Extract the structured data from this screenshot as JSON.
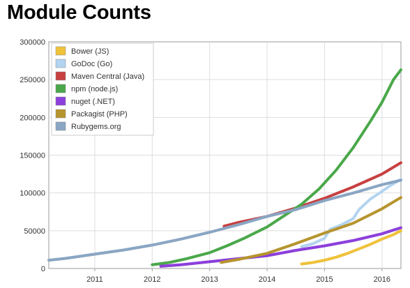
{
  "page": {
    "title": "Module Counts"
  },
  "chart_data": {
    "type": "line",
    "title": "Module Counts",
    "xlabel": "",
    "ylabel": "",
    "xlim": [
      2010.2,
      2016.33
    ],
    "ylim": [
      0,
      300000
    ],
    "x_ticks": [
      "2011",
      "2012",
      "2013",
      "2014",
      "2015",
      "2016"
    ],
    "y_ticks": [
      "0",
      "50000",
      "100000",
      "150000",
      "200000",
      "250000",
      "300000"
    ],
    "grid": true,
    "legend_position": "top-left",
    "series": [
      {
        "name": "Bower (JS)",
        "color": "#f0c23a",
        "x": [
          2014.6,
          2014.8,
          2015.0,
          2015.2,
          2015.4,
          2015.6,
          2015.8,
          2016.0,
          2016.2,
          2016.33
        ],
        "y": [
          6000,
          8000,
          11000,
          15000,
          20000,
          26000,
          32000,
          39000,
          45000,
          50000
        ]
      },
      {
        "name": "GoDoc (Go)",
        "color": "#b3d4f0",
        "x": [
          2014.6,
          2014.8,
          2015.0,
          2015.1,
          2015.3,
          2015.5,
          2015.6,
          2015.8,
          2016.0,
          2016.15,
          2016.33
        ],
        "y": [
          29000,
          33000,
          40000,
          52000,
          58000,
          66000,
          78000,
          92000,
          102000,
          110000,
          118000
        ]
      },
      {
        "name": "Maven Central (Java)",
        "color": "#c84040",
        "x": [
          2013.25,
          2013.5,
          2014.0,
          2014.5,
          2015.0,
          2015.5,
          2016.0,
          2016.33
        ],
        "y": [
          56000,
          61000,
          69000,
          80000,
          93000,
          108000,
          125000,
          140000
        ]
      },
      {
        "name": "npm (node.js)",
        "color": "#4aa84a",
        "x": [
          2012.0,
          2012.3,
          2012.6,
          2013.0,
          2013.3,
          2013.6,
          2014.0,
          2014.3,
          2014.6,
          2014.9,
          2015.2,
          2015.5,
          2015.8,
          2016.0,
          2016.2,
          2016.33
        ],
        "y": [
          5000,
          8000,
          13000,
          21000,
          30000,
          40000,
          55000,
          70000,
          85000,
          105000,
          130000,
          160000,
          195000,
          220000,
          250000,
          263000
        ]
      },
      {
        "name": "nuget (.NET)",
        "color": "#8c3fdc",
        "x": [
          2012.15,
          2012.5,
          2013.0,
          2013.5,
          2014.0,
          2014.5,
          2015.0,
          2015.5,
          2016.0,
          2016.33
        ],
        "y": [
          3000,
          5000,
          9000,
          13000,
          17000,
          24000,
          30000,
          37000,
          46000,
          54000
        ]
      },
      {
        "name": "Packagist (PHP)",
        "color": "#b7952e",
        "x": [
          2013.2,
          2013.5,
          2014.0,
          2014.5,
          2015.0,
          2015.5,
          2016.0,
          2016.33
        ],
        "y": [
          8000,
          12000,
          20000,
          33000,
          47000,
          60000,
          79000,
          94000
        ]
      },
      {
        "name": "Rubygems.org",
        "color": "#8aa6c4",
        "x": [
          2010.2,
          2010.5,
          2011.0,
          2011.5,
          2012.0,
          2012.5,
          2013.0,
          2013.5,
          2014.0,
          2014.5,
          2015.0,
          2015.5,
          2016.0,
          2016.33
        ],
        "y": [
          11000,
          13500,
          19000,
          24500,
          31000,
          39000,
          48000,
          58000,
          69000,
          78000,
          90000,
          100000,
          111000,
          117000
        ]
      }
    ]
  }
}
